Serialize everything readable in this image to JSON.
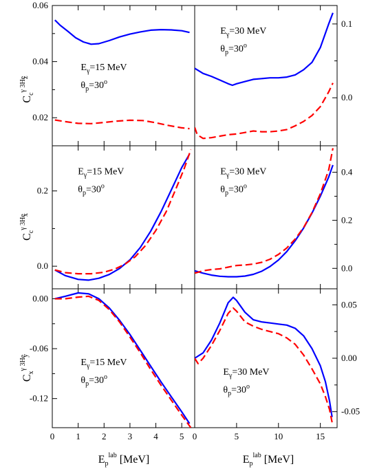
{
  "chart_data": [
    {
      "type": "line",
      "row": 0,
      "col": 0,
      "ylabel": "C_c^{γ 3He} z",
      "ylim": [
        0.01,
        0.06
      ],
      "xlim": [
        0,
        5.5
      ],
      "yticks": [
        "0.02",
        "0.04",
        "0.06"
      ],
      "ytick_values": [
        0.02,
        0.04,
        0.06
      ],
      "ytick_side": "left",
      "annotation": {
        "E": "E",
        "Esub": "γ",
        "Eval": "=15 MeV",
        "theta": "θ",
        "thsub": "p",
        "thval": "=30",
        "deg": "o"
      },
      "annotation_pos": "center-left",
      "series": [
        {
          "color": "#0000ff",
          "style": "solid",
          "x": [
            0.1,
            0.3,
            0.6,
            0.9,
            1.2,
            1.5,
            1.8,
            2.2,
            2.6,
            3.0,
            3.4,
            3.8,
            4.2,
            4.6,
            5.0,
            5.3
          ],
          "y": [
            0.0548,
            0.053,
            0.0508,
            0.0485,
            0.047,
            0.0462,
            0.0464,
            0.0475,
            0.0488,
            0.0498,
            0.0506,
            0.0512,
            0.0514,
            0.0513,
            0.051,
            0.0504
          ]
        },
        {
          "color": "#ff0000",
          "style": "dashed",
          "x": [
            0.1,
            0.5,
            1.0,
            1.5,
            2.0,
            2.5,
            3.0,
            3.5,
            4.0,
            4.5,
            5.0,
            5.3
          ],
          "y": [
            0.0192,
            0.0186,
            0.018,
            0.0179,
            0.0183,
            0.0188,
            0.0191,
            0.019,
            0.0182,
            0.0172,
            0.0164,
            0.0161
          ]
        }
      ]
    },
    {
      "type": "line",
      "row": 0,
      "col": 1,
      "ylim": [
        -0.065,
        0.125
      ],
      "xlim": [
        0,
        17
      ],
      "yticks": [
        "0.0",
        "0.1"
      ],
      "ytick_values": [
        0.0,
        0.1
      ],
      "ytick_side": "right",
      "annotation": {
        "E": "E",
        "Esub": "γ",
        "Eval": "=30 MeV",
        "theta": "θ",
        "thsub": "p",
        "thval": "=30",
        "deg": "o"
      },
      "annotation_pos": "top-left",
      "series": [
        {
          "color": "#0000ff",
          "style": "solid",
          "x": [
            0,
            1,
            2,
            3,
            4,
            4.5,
            5,
            6,
            7,
            8,
            9,
            10,
            11,
            12,
            13,
            14,
            15,
            16,
            16.5
          ],
          "y": [
            0.04,
            0.033,
            0.029,
            0.024,
            0.019,
            0.017,
            0.019,
            0.022,
            0.025,
            0.026,
            0.027,
            0.027,
            0.028,
            0.031,
            0.038,
            0.048,
            0.068,
            0.1,
            0.115
          ]
        },
        {
          "color": "#ff0000",
          "style": "dashed",
          "x": [
            0,
            0.3,
            1,
            2,
            3,
            4,
            5,
            6,
            7,
            8,
            9,
            10,
            11,
            12,
            13,
            14,
            15,
            16,
            16.5
          ],
          "y": [
            -0.04,
            -0.05,
            -0.055,
            -0.054,
            -0.052,
            -0.05,
            -0.049,
            -0.047,
            -0.045,
            -0.046,
            -0.046,
            -0.045,
            -0.043,
            -0.038,
            -0.032,
            -0.024,
            -0.012,
            0.008,
            0.02
          ]
        }
      ]
    },
    {
      "type": "line",
      "row": 1,
      "col": 0,
      "ylabel": "C_c^{γ 3He} x",
      "ylim": [
        -0.06,
        0.32
      ],
      "xlim": [
        0,
        5.5
      ],
      "yticks": [
        "0.0",
        "0.2"
      ],
      "ytick_values": [
        0.0,
        0.2
      ],
      "ytick_side": "left",
      "annotation": {
        "E": "E",
        "Esub": "γ",
        "Eval": "=15 MeV",
        "theta": "θ",
        "thsub": "p",
        "thval": "=30",
        "deg": "o"
      },
      "annotation_pos": "top-left",
      "series": [
        {
          "color": "#0000ff",
          "style": "solid",
          "x": [
            0.1,
            0.5,
            1.0,
            1.4,
            1.8,
            2.2,
            2.6,
            3.0,
            3.4,
            3.8,
            4.2,
            4.6,
            5.0,
            5.3
          ],
          "y": [
            -0.01,
            -0.025,
            -0.035,
            -0.037,
            -0.032,
            -0.022,
            -0.006,
            0.017,
            0.05,
            0.093,
            0.145,
            0.203,
            0.262,
            0.298
          ]
        },
        {
          "color": "#ff0000",
          "style": "dashed",
          "x": [
            0.1,
            0.5,
            1.0,
            1.5,
            2.0,
            2.4,
            2.8,
            3.2,
            3.6,
            4.0,
            4.4,
            4.8,
            5.1,
            5.35
          ],
          "y": [
            -0.01,
            -0.017,
            -0.02,
            -0.02,
            -0.016,
            -0.008,
            0.005,
            0.025,
            0.055,
            0.095,
            0.145,
            0.21,
            0.26,
            0.31
          ]
        }
      ]
    },
    {
      "type": "line",
      "row": 1,
      "col": 1,
      "ylim": [
        -0.085,
        0.51
      ],
      "xlim": [
        0,
        17
      ],
      "yticks": [
        "0.0",
        "0.2",
        "0.4"
      ],
      "ytick_values": [
        0.0,
        0.2,
        0.4
      ],
      "ytick_side": "right",
      "annotation": {
        "E": "E",
        "Esub": "γ",
        "Eval": "=30 MeV",
        "theta": "θ",
        "thsub": "p",
        "thval": "=30",
        "deg": "o"
      },
      "annotation_pos": "top-left",
      "series": [
        {
          "color": "#0000ff",
          "style": "solid",
          "x": [
            0,
            1,
            2,
            3,
            4,
            5,
            6,
            7,
            8,
            9,
            10,
            11,
            12,
            13,
            14,
            15,
            16,
            16.5
          ],
          "y": [
            -0.01,
            -0.02,
            -0.028,
            -0.033,
            -0.035,
            -0.035,
            -0.032,
            -0.025,
            -0.012,
            0.008,
            0.035,
            0.07,
            0.115,
            0.168,
            0.23,
            0.3,
            0.38,
            0.43
          ]
        },
        {
          "color": "#ff0000",
          "style": "dashed",
          "x": [
            0,
            1,
            2,
            3,
            4,
            5,
            6,
            7,
            8,
            9,
            10,
            11,
            12,
            13,
            14,
            15,
            16,
            16.5
          ],
          "y": [
            -0.02,
            -0.01,
            -0.005,
            -0.002,
            0.005,
            0.012,
            0.014,
            0.018,
            0.025,
            0.038,
            0.058,
            0.085,
            0.122,
            0.17,
            0.232,
            0.31,
            0.41,
            0.5
          ]
        }
      ]
    },
    {
      "type": "line",
      "row": 2,
      "col": 0,
      "ylabel": "C_x^{γ 3He} y",
      "ylim": [
        -0.155,
        0.012
      ],
      "xlim": [
        0,
        5.5
      ],
      "yticks": [
        "0.00",
        "-0.06",
        "-0.12"
      ],
      "ytick_values": [
        0.0,
        -0.06,
        -0.12
      ],
      "ytick_side": "left",
      "xticks": [
        "0",
        "1",
        "2",
        "3",
        "4",
        "5"
      ],
      "xtick_values": [
        0,
        1,
        2,
        3,
        4,
        5
      ],
      "annotation": {
        "E": "E",
        "Esub": "γ",
        "Eval": "=15 MeV",
        "theta": "θ",
        "thsub": "p",
        "thval": "=30",
        "deg": "o"
      },
      "annotation_pos": "center-left",
      "series": [
        {
          "color": "#0000ff",
          "style": "solid",
          "x": [
            0.1,
            0.5,
            1.0,
            1.4,
            1.8,
            2.2,
            2.6,
            3.0,
            3.4,
            3.8,
            4.2,
            4.6,
            5.0,
            5.3
          ],
          "y": [
            0.0,
            0.003,
            0.007,
            0.006,
            0.0,
            -0.011,
            -0.026,
            -0.043,
            -0.062,
            -0.081,
            -0.1,
            -0.118,
            -0.136,
            -0.15
          ]
        },
        {
          "color": "#ff0000",
          "style": "dashed",
          "x": [
            0.1,
            0.5,
            1.0,
            1.4,
            1.8,
            2.2,
            2.6,
            3.0,
            3.4,
            3.8,
            4.2,
            4.6,
            5.0,
            5.35
          ],
          "y": [
            0.0,
            0.0,
            0.002,
            0.003,
            -0.002,
            -0.013,
            -0.028,
            -0.046,
            -0.065,
            -0.085,
            -0.104,
            -0.122,
            -0.14,
            -0.155
          ]
        }
      ]
    },
    {
      "type": "line",
      "row": 2,
      "col": 1,
      "ylim": [
        -0.065,
        0.065
      ],
      "xlim": [
        0,
        17
      ],
      "yticks": [
        "0.05",
        "0.00",
        "-0.05"
      ],
      "ytick_values": [
        0.05,
        0.0,
        -0.05
      ],
      "ytick_side": "right",
      "xticks": [
        "0",
        "5",
        "10",
        "15"
      ],
      "xtick_values": [
        0,
        5,
        10,
        15
      ],
      "annotation": {
        "E": "E",
        "Esub": "γ",
        "Eval": "=30 MeV",
        "theta": "θ",
        "thsub": "p",
        "thval": "=30",
        "deg": "o"
      },
      "annotation_pos": "center",
      "series": [
        {
          "color": "#0000ff",
          "style": "solid",
          "x": [
            0,
            1,
            2,
            3,
            4,
            4.6,
            5,
            6,
            7,
            8,
            9,
            10,
            11,
            12,
            13,
            14,
            15,
            15.6,
            16.1,
            16.4
          ],
          "y": [
            0.0,
            0.005,
            0.017,
            0.033,
            0.052,
            0.057,
            0.054,
            0.043,
            0.036,
            0.034,
            0.033,
            0.032,
            0.031,
            0.028,
            0.021,
            0.009,
            -0.007,
            -0.022,
            -0.04,
            -0.055
          ]
        },
        {
          "color": "#ff0000",
          "style": "dashed",
          "x": [
            0,
            0.4,
            1,
            2,
            3,
            4,
            4.6,
            5,
            6,
            7,
            8,
            9,
            10,
            11,
            12,
            13,
            14,
            15,
            15.6,
            16.1,
            16.4
          ],
          "y": [
            0.0,
            -0.005,
            0.0,
            0.012,
            0.026,
            0.042,
            0.047,
            0.044,
            0.034,
            0.03,
            0.027,
            0.025,
            0.023,
            0.019,
            0.013,
            0.003,
            -0.01,
            -0.024,
            -0.036,
            -0.048,
            -0.06
          ]
        }
      ]
    }
  ],
  "axes": {
    "xlabel_left": {
      "E": "E",
      "sub": "p",
      "sup": "lab",
      "unit": " [MeV]"
    },
    "xlabel_right": {
      "E": "E",
      "sub": "p",
      "sup": "lab",
      "unit": " [MeV]"
    },
    "ylabels": [
      {
        "C": "C",
        "sub": "c",
        "sup": "γ 3He",
        "subsub": "z"
      },
      {
        "C": "C",
        "sub": "c",
        "sup": "γ 3He",
        "subsub": "x"
      },
      {
        "C": "C",
        "sub": "x",
        "sup": "γ 3He",
        "subsub": "y"
      }
    ]
  },
  "colors": {
    "blue": "#0000ff",
    "red": "#ff0000"
  }
}
